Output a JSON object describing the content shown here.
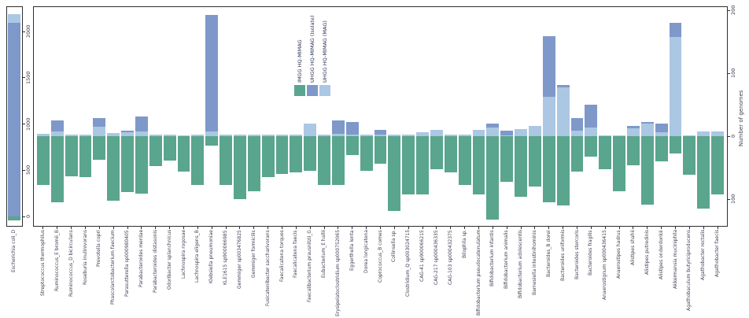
{
  "chart_data": {
    "type": "bar",
    "title": "",
    "description": "Mirrored stacked bar chart of genome counts per bacterial species. Green bars extend downward (IMGG HQ-MIMAG genomes); blue bars extend upward (UHGG HQ-MIMAG genomes, MAG portion light blue adjacent to baseline, Isolate portion darker blue stacked above). A separate left facet on its own scale shows Escherichia coli_D.",
    "colors": {
      "imgg": "#5aa58d",
      "uhgg_isolate": "#7e99c9",
      "uhgg_mag": "#abc7e3",
      "axis_text": "#3f3f52",
      "legend_text": "#2e3456",
      "panel_border": "#2e2e2e"
    },
    "legend": {
      "position": "top-center-inside",
      "entries": [
        {
          "label": "IMGG HQ-MIMAG",
          "color": "#5aa58d"
        },
        {
          "label": "UHGG HQ-MIMAG (Isolate)",
          "color": "#7e99c9"
        },
        {
          "label": "UHGG HQ-MIMAG (MAG)",
          "color": "#abc7e3"
        }
      ]
    },
    "left_panel": {
      "category": "Escherichia coli_D",
      "imgg": 40,
      "uhgg_isolate": 2090,
      "uhgg_mag": 100,
      "y_ticks": [
        0,
        500,
        1000,
        1500,
        2000
      ],
      "ylim": [
        -120,
        2300
      ]
    },
    "main_panel": {
      "ylabel": "Number of genomes",
      "y_ticks": [
        {
          "value": 200,
          "label": "200"
        },
        {
          "value": 100,
          "label": "100"
        },
        {
          "value": 0,
          "label": "0"
        },
        {
          "value": -100,
          "label": "100"
        }
      ],
      "ylim": [
        -145,
        207
      ],
      "grid": false,
      "species": [
        {
          "name": "Streptococcus thermophilus",
          "imgg": 77,
          "isolate": 0,
          "mag": 4
        },
        {
          "name": "Ruminococcus_E bromii_B",
          "imgg": 105,
          "isolate": 18,
          "mag": 7
        },
        {
          "name": "Ruminococcus_D bicirculans",
          "imgg": 64,
          "isolate": 0,
          "mag": 2
        },
        {
          "name": "Roseburia inulinivorans",
          "imgg": 65,
          "isolate": 0,
          "mag": 3
        },
        {
          "name": "Prevotella copri",
          "imgg": 38,
          "isolate": 14,
          "mag": 15
        },
        {
          "name": "Phascolarctobacterium faecium",
          "imgg": 102,
          "isolate": 0,
          "mag": 5
        },
        {
          "name": "Parasutterella sp000980405",
          "imgg": 89,
          "isolate": 3,
          "mag": 6
        },
        {
          "name": "Parabacteroides merdae",
          "imgg": 91,
          "isolate": 24,
          "mag": 7
        },
        {
          "name": "Parabacteroides distasonis",
          "imgg": 48,
          "isolate": 0,
          "mag": 3
        },
        {
          "name": "Odoribacter splanchnicus",
          "imgg": 39,
          "isolate": 0,
          "mag": 2
        },
        {
          "name": "Lachnospira rogosae",
          "imgg": 56,
          "isolate": 0,
          "mag": 1
        },
        {
          "name": "Lachnospira eligens_B",
          "imgg": 77,
          "isolate": 0,
          "mag": 2
        },
        {
          "name": "Klebsiella pneumoniae",
          "imgg": 15,
          "isolate": 185,
          "mag": 7
        },
        {
          "name": "KLE1615 sp900066985",
          "imgg": 77,
          "isolate": 0,
          "mag": 3
        },
        {
          "name": "Gemmiger sp003476825",
          "imgg": 100,
          "isolate": 0,
          "mag": 3
        },
        {
          "name": "Gemmiger formicilis",
          "imgg": 88,
          "isolate": 0,
          "mag": 2
        },
        {
          "name": "Fusicatenibacter saccharivorans",
          "imgg": 65,
          "isolate": 0,
          "mag": 3
        },
        {
          "name": "Faecalicatena torques",
          "imgg": 60,
          "isolate": 0,
          "mag": 2
        },
        {
          "name": "Faecalicatena faecis",
          "imgg": 57,
          "isolate": 0,
          "mag": 2
        },
        {
          "name": "Faecalibacterium prausnitzii_G",
          "imgg": 55,
          "isolate": 0,
          "mag": 20
        },
        {
          "name": "Eubacterium_E hallii",
          "imgg": 77,
          "isolate": 0,
          "mag": 2
        },
        {
          "name": "Erysipelatoclostridium sp000752065",
          "imgg": 77,
          "isolate": 21,
          "mag": 4
        },
        {
          "name": "Eggerthella lenta",
          "imgg": 30,
          "isolate": 21,
          "mag": 2
        },
        {
          "name": "Dorea longicatena",
          "imgg": 55,
          "isolate": 0,
          "mag": 3
        },
        {
          "name": "Coprococcus_B comes",
          "imgg": 44,
          "isolate": 8,
          "mag": 2
        },
        {
          "name": "Collinsella sp.",
          "imgg": 119,
          "isolate": 0,
          "mag": 3
        },
        {
          "name": "Clostridium_Q sp003024715",
          "imgg": 92,
          "isolate": 0,
          "mag": 3
        },
        {
          "name": "CAG-41 sp900066215",
          "imgg": 92,
          "isolate": 0,
          "mag": 6
        },
        {
          "name": "CAG-217 sp000436335",
          "imgg": 52,
          "isolate": 0,
          "mag": 10
        },
        {
          "name": "CAG-103 sp000432375",
          "imgg": 57,
          "isolate": 0,
          "mag": 2
        },
        {
          "name": "Bilophila sp.",
          "imgg": 77,
          "isolate": 0,
          "mag": 2
        },
        {
          "name": "Bifidobacterium pseudocatenulatum",
          "imgg": 92,
          "isolate": 0,
          "mag": 10
        },
        {
          "name": "Bifidobacterium infantis",
          "imgg": 132,
          "isolate": 6,
          "mag": 14
        },
        {
          "name": "Bifidobacterium animalis",
          "imgg": 73,
          "isolate": 8,
          "mag": 1
        },
        {
          "name": "Bifidobacterium adolescentis",
          "imgg": 96,
          "isolate": 0,
          "mag": 11
        },
        {
          "name": "Barnesiella intestinihominis",
          "imgg": 80,
          "isolate": 0,
          "mag": 16
        },
        {
          "name": "Bacteroides_B dorei",
          "imgg": 105,
          "isolate": 96,
          "mag": 63
        },
        {
          "name": "Bacteroides uniformis",
          "imgg": 110,
          "isolate": 3,
          "mag": 78
        },
        {
          "name": "Bacteroides stercoris",
          "imgg": 56,
          "isolate": 20,
          "mag": 9
        },
        {
          "name": "Bacteroides fragilis",
          "imgg": 33,
          "isolate": 36,
          "mag": 14
        },
        {
          "name": "Anaerostignum sp000436415",
          "imgg": 52,
          "isolate": 0,
          "mag": 1
        },
        {
          "name": "Anaerostipes hadrus",
          "imgg": 88,
          "isolate": 0,
          "mag": 1
        },
        {
          "name": "Alistipes shahii",
          "imgg": 46,
          "isolate": 4,
          "mag": 12
        },
        {
          "name": "Alistipes putredinis",
          "imgg": 109,
          "isolate": 3,
          "mag": 20
        },
        {
          "name": "Alistipes onderdonkii",
          "imgg": 40,
          "isolate": 14,
          "mag": 6
        },
        {
          "name": "Akkermansia muciniphila",
          "imgg": 27,
          "isolate": 22,
          "mag": 158
        },
        {
          "name": "Agathobaculum butyriciproducens",
          "imgg": 61,
          "isolate": 0,
          "mag": 1
        },
        {
          "name": "Agathobacter rectalis",
          "imgg": 115,
          "isolate": 0,
          "mag": 8
        },
        {
          "name": "Agathobacter faecis",
          "imgg": 92,
          "isolate": 0,
          "mag": 7
        }
      ]
    }
  }
}
